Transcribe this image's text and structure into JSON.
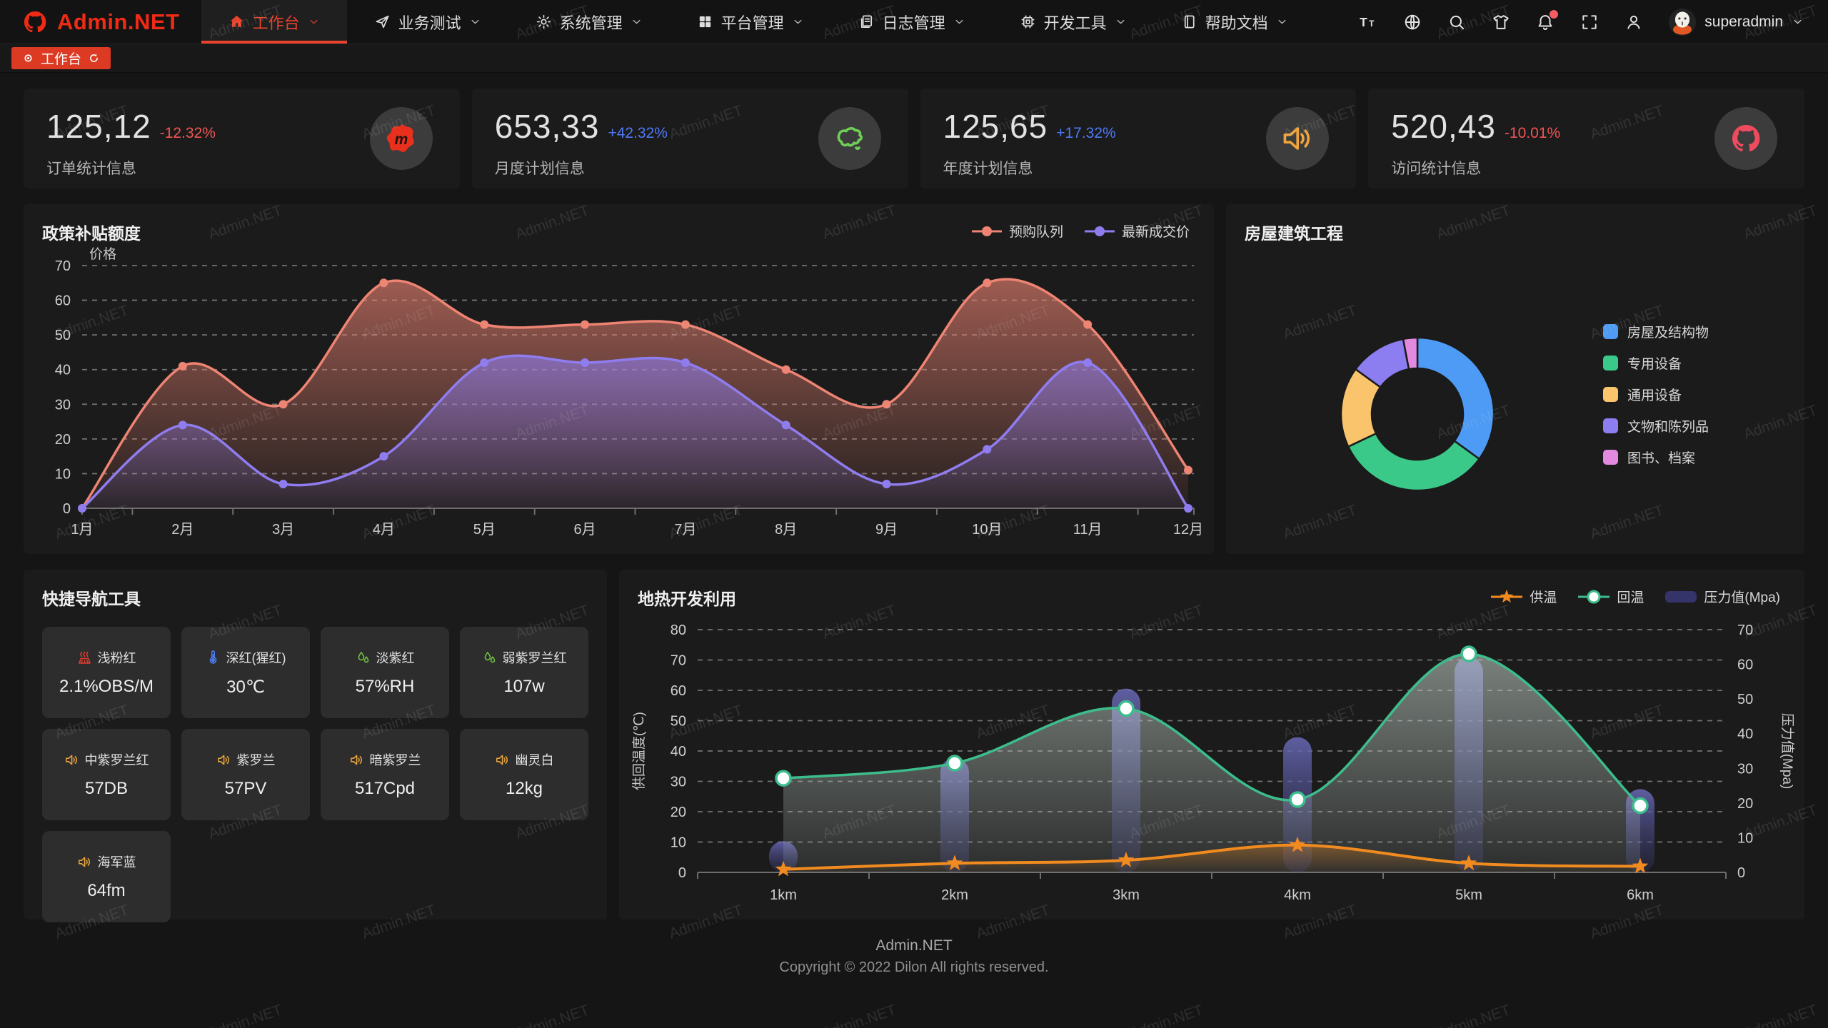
{
  "brand": {
    "name": "Admin.NET"
  },
  "watermark": "Admin.NET",
  "nav": {
    "items": [
      {
        "id": "workbench",
        "label": "工作台",
        "icon": "home-icon",
        "active": true
      },
      {
        "id": "business-test",
        "label": "业务测试",
        "icon": "send-icon",
        "active": false
      },
      {
        "id": "system-manage",
        "label": "系统管理",
        "icon": "gear-icon",
        "active": false
      },
      {
        "id": "platform-manage",
        "label": "平台管理",
        "icon": "grid-icon",
        "active": false
      },
      {
        "id": "log-manage",
        "label": "日志管理",
        "icon": "doc-icon",
        "active": false
      },
      {
        "id": "dev-tools",
        "label": "开发工具",
        "icon": "chip-icon",
        "active": false
      },
      {
        "id": "help-docs",
        "label": "帮助文档",
        "icon": "book-icon",
        "active": false
      }
    ]
  },
  "topbar": {
    "icons": [
      {
        "id": "font-size",
        "icon": "font-size-icon",
        "badge": false
      },
      {
        "id": "language",
        "icon": "language-icon",
        "badge": false
      },
      {
        "id": "search",
        "icon": "search-icon",
        "badge": false
      },
      {
        "id": "theme",
        "icon": "theme-icon",
        "badge": false
      },
      {
        "id": "notification",
        "icon": "bell-icon",
        "badge": true
      },
      {
        "id": "fullscreen",
        "icon": "fullscreen-icon",
        "badge": false
      },
      {
        "id": "profile",
        "icon": "user-icon",
        "badge": false
      }
    ],
    "user": {
      "name": "superadmin",
      "avatar": "octocat-avatar-icon"
    }
  },
  "tabbar": {
    "active_tab": "工作台"
  },
  "stat_cards": [
    {
      "value": "125,12",
      "delta": "-12.32%",
      "trend": "down",
      "label": "订单统计信息",
      "icon": "meetup-icon",
      "icon_color": "#e8301c"
    },
    {
      "value": "653,33",
      "delta": "+42.32%",
      "trend": "up",
      "label": "月度计划信息",
      "icon": "china-map-icon",
      "icon_color": "#6fce57"
    },
    {
      "value": "125,65",
      "delta": "+17.32%",
      "trend": "up",
      "label": "年度计划信息",
      "icon": "speaker-icon",
      "icon_color": "#f0a43c"
    },
    {
      "value": "520,43",
      "delta": "-10.01%",
      "trend": "down",
      "label": "访问统计信息",
      "icon": "octocat-icon",
      "icon_color": "#ef4b5e"
    }
  ],
  "chart_data": [
    {
      "type": "area",
      "title": "政策补贴额度",
      "ylabel": "价格",
      "categories": [
        "1月",
        "2月",
        "3月",
        "4月",
        "5月",
        "6月",
        "7月",
        "8月",
        "9月",
        "10月",
        "11月",
        "12月"
      ],
      "ylim": [
        0,
        70
      ],
      "ytick_step": 10,
      "grid": "dashed",
      "legend_position": "top-right",
      "series": [
        {
          "name": "预购队列",
          "color": "#ee8473",
          "values": [
            0,
            41,
            30,
            65,
            53,
            53,
            53,
            40,
            30,
            65,
            53,
            11
          ]
        },
        {
          "name": "最新成交价",
          "color": "#8f7df0",
          "values": [
            0,
            24,
            7,
            15,
            42,
            42,
            42,
            24,
            7,
            17,
            42,
            0
          ]
        }
      ]
    },
    {
      "type": "pie",
      "title": "房屋建筑工程",
      "slices": [
        {
          "label": "房屋及结构物",
          "value": 35,
          "color": "#4d9bf5"
        },
        {
          "label": "专用设备",
          "value": 33,
          "color": "#3bc98a"
        },
        {
          "label": "通用设备",
          "value": 17,
          "color": "#f9c46b"
        },
        {
          "label": "文物和陈列品",
          "value": 12,
          "color": "#8c7df0"
        },
        {
          "label": "图书、档案",
          "value": 3,
          "color": "#e18ae0"
        }
      ]
    },
    {
      "type": "mixed",
      "title": "地热开发利用",
      "categories": [
        "1km",
        "2km",
        "3km",
        "4km",
        "5km",
        "6km"
      ],
      "left_axis": {
        "label": "供回温度(℃)",
        "lim": [
          0,
          80
        ],
        "step": 10
      },
      "right_axis": {
        "label": "压力值(Mpa)",
        "lim": [
          0,
          70
        ],
        "step": 10
      },
      "series": [
        {
          "name": "供温",
          "kind": "line",
          "marker": "star",
          "axis": "left",
          "color": "#f28b1f",
          "values": [
            1,
            3,
            4,
            9,
            3,
            2
          ]
        },
        {
          "name": "回温",
          "kind": "line",
          "marker": "circle",
          "axis": "left",
          "color": "#3dbd8c",
          "values": [
            31,
            36,
            54,
            24,
            72,
            22
          ]
        },
        {
          "name": "压力值(Mpa)",
          "kind": "bar",
          "axis": "right",
          "color": "#50509b",
          "values": [
            9,
            33,
            53,
            39,
            62,
            24
          ]
        }
      ]
    }
  ],
  "quick_nav": {
    "title": "快捷导航工具",
    "buttons": [
      {
        "label": "浅粉红",
        "value": "2.1%OBS/M",
        "icon": "heater-icon",
        "icon_color": "#e23b2e"
      },
      {
        "label": "深红(猩红)",
        "value": "30℃",
        "icon": "thermometer-icon",
        "icon_color": "#4f7df2"
      },
      {
        "label": "淡紫红",
        "value": "57%RH",
        "icon": "humidity-icon",
        "icon_color": "#72c040"
      },
      {
        "label": "弱紫罗兰红",
        "value": "107w",
        "icon": "humidity-icon",
        "icon_color": "#72c040"
      },
      {
        "label": "中紫罗兰红",
        "value": "57DB",
        "icon": "speaker-icon",
        "icon_color": "#e8a33d"
      },
      {
        "label": "紫罗兰",
        "value": "57PV",
        "icon": "speaker-icon",
        "icon_color": "#e8a33d"
      },
      {
        "label": "暗紫罗兰",
        "value": "517Cpd",
        "icon": "speaker-icon",
        "icon_color": "#e8a33d"
      },
      {
        "label": "幽灵白",
        "value": "12kg",
        "icon": "speaker-icon",
        "icon_color": "#e8a33d"
      },
      {
        "label": "海军蓝",
        "value": "64fm",
        "icon": "speaker-icon",
        "icon_color": "#e8a33d"
      }
    ]
  },
  "footer": {
    "line1": "Admin.NET",
    "line2": "Copyright © 2022 Dilon All rights reserved."
  }
}
